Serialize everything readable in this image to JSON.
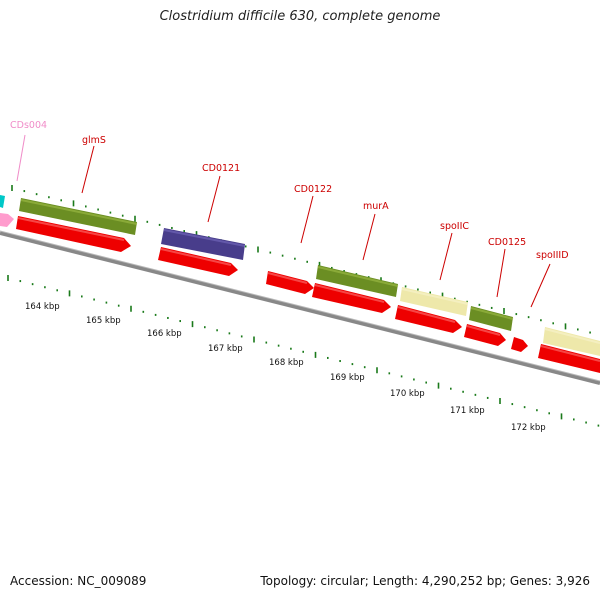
{
  "title": "Clostridium difficile 630, complete genome",
  "footer": {
    "accession": "Accession: NC_009089",
    "summary": "Topology: circular; Length: 4,290,252 bp; Genes: 3,926"
  },
  "colors": {
    "gene_label": "#cc0000",
    "gene_label_faded": "#f08cc8",
    "tick": "#1a7a1a",
    "backbone": "#888888",
    "cds_red": "#ee0000",
    "olive": "#6b8e23",
    "navy": "#483d8b",
    "khaki": "#eee8aa",
    "cyan": "#00c8c8",
    "pink": "#ff9ccd"
  },
  "gene_labels": [
    {
      "id": "cds004",
      "text": "CDs004"
    },
    {
      "id": "glms",
      "text": "glmS"
    },
    {
      "id": "cd0121",
      "text": "CD0121"
    },
    {
      "id": "cd0122",
      "text": "CD0122"
    },
    {
      "id": "mura",
      "text": "murA"
    },
    {
      "id": "spoiic",
      "text": "spoIIC"
    },
    {
      "id": "cd0125",
      "text": "CD0125"
    },
    {
      "id": "spoiiid",
      "text": "spoIIID"
    }
  ],
  "kbp_labels": [
    "164 kbp",
    "165 kbp",
    "166 kbp",
    "167 kbp",
    "168 kbp",
    "169 kbp",
    "170 kbp",
    "171 kbp",
    "172 kbp"
  ]
}
